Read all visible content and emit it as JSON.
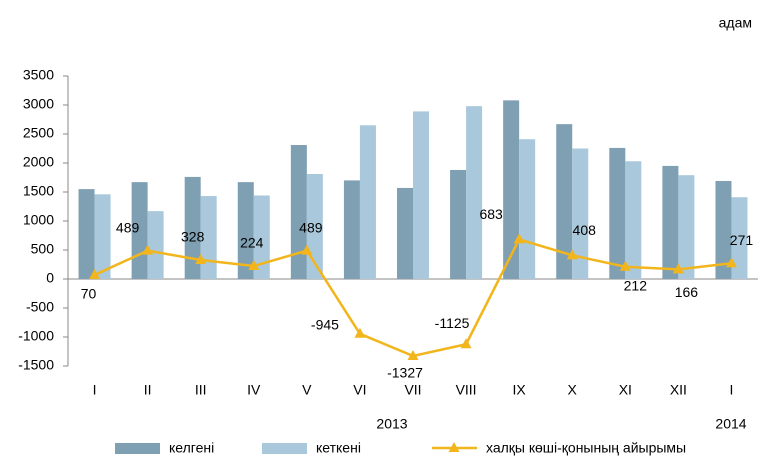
{
  "chart_data": {
    "type": "bar_line",
    "unit": "адам",
    "categories": [
      "I",
      "II",
      "III",
      "IV",
      "V",
      "VI",
      "VII",
      "VIII",
      "IX",
      "X",
      "XI",
      "XII",
      "I"
    ],
    "annotations": [
      "2013",
      "2014"
    ],
    "series": [
      {
        "name": "келгені",
        "type": "bar",
        "color": "#7f9fb3",
        "values": [
          1550,
          1670,
          1760,
          1670,
          2310,
          1700,
          1570,
          1880,
          3080,
          2670,
          2260,
          1950,
          1690
        ]
      },
      {
        "name": "кеткені",
        "type": "bar",
        "color": "#a9c8db",
        "values": [
          1460,
          1170,
          1430,
          1440,
          1810,
          2650,
          2890,
          2980,
          2410,
          2250,
          2030,
          1790,
          1410
        ]
      },
      {
        "name": "халқы көші-қонының айырымы",
        "type": "line",
        "color": "#f2b51c",
        "values": [
          70,
          489,
          328,
          224,
          489,
          -945,
          -1327,
          -1125,
          683,
          408,
          212,
          166,
          271
        ]
      }
    ],
    "ylim": [
      -1500,
      3500
    ],
    "yticks": [
      -1500,
      -1000,
      -500,
      0,
      500,
      1000,
      1500,
      2000,
      2500,
      3000,
      3500
    ],
    "grid": false
  }
}
